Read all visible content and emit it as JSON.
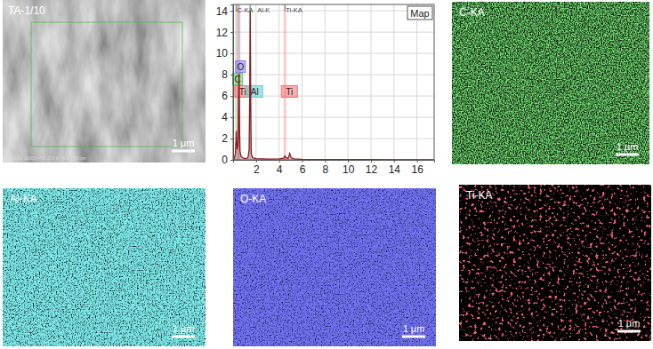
{
  "sem": {
    "label": "TA-1/10",
    "scale_bar": "1 μm",
    "info": "SE MAG: 20000 x HV: 15.0 kV WD: 15.0 mm"
  },
  "chart_data": {
    "type": "line",
    "title": "Map",
    "x": [
      0,
      0.1,
      0.2,
      0.25,
      0.28,
      0.31,
      0.36,
      0.42,
      0.45,
      0.48,
      0.52,
      0.56,
      0.6,
      0.7,
      0.9,
      1.1,
      1.3,
      1.4,
      1.45,
      1.49,
      1.53,
      1.58,
      1.7,
      2,
      2.5,
      3,
      3.5,
      4,
      4.4,
      4.51,
      4.6,
      4.8,
      4.93,
      5.05,
      5.3,
      6,
      8,
      10,
      12,
      14,
      16,
      17.5
    ],
    "values": [
      0,
      0.1,
      0.6,
      1.8,
      2.7,
      1.6,
      1.0,
      1.5,
      2.2,
      5.5,
      8.1,
      3.0,
      0.8,
      0.3,
      0.15,
      0.12,
      0.2,
      1.0,
      6.0,
      14.0,
      5.5,
      0.6,
      0.2,
      0.12,
      0.1,
      0.08,
      0.08,
      0.1,
      0.15,
      0.35,
      0.2,
      0.15,
      0.6,
      0.2,
      0.1,
      0.05,
      0.03,
      0.02,
      0.02,
      0.01,
      0.01,
      0
    ],
    "color": "#8b1a1a",
    "xlim": [
      0,
      17.5
    ],
    "ylim": [
      0,
      14.6
    ],
    "xticks": [
      2,
      4,
      6,
      8,
      10,
      12,
      14,
      16
    ],
    "yticks": [
      0,
      2,
      4,
      6,
      8,
      10,
      12,
      14
    ],
    "grid": true,
    "lines": [
      {
        "label": "C-KA",
        "energy": 0.277
      },
      {
        "label": "Al-K",
        "energy": 1.486
      },
      {
        "label": "Ti-KA",
        "energy": 4.51
      }
    ],
    "elements": [
      {
        "label": "O",
        "energy": 0.525,
        "color": "#8a7cf0"
      },
      {
        "label": "C",
        "energy": 0.277,
        "color": "#6ccf6c"
      },
      {
        "label": "Ti",
        "energy": 0.452,
        "color": "#f07070"
      },
      {
        "label": "Al",
        "energy": 1.486,
        "color": "#5fd0d0"
      },
      {
        "label": "Ti",
        "energy": 4.51,
        "color": "#f07070"
      }
    ]
  },
  "maps": [
    {
      "label": "C-KA",
      "color": "#2fd02f",
      "scale_bar": "1 μm"
    },
    {
      "label": "Al-KA",
      "color": "#33cccc",
      "scale_bar": "1 μm"
    },
    {
      "label": "O-KA",
      "color": "#2a2ae0",
      "scale_bar": "1 μm"
    },
    {
      "label": "Ti-KA",
      "color": "#ee2030",
      "scale_bar": "1 μm"
    }
  ]
}
